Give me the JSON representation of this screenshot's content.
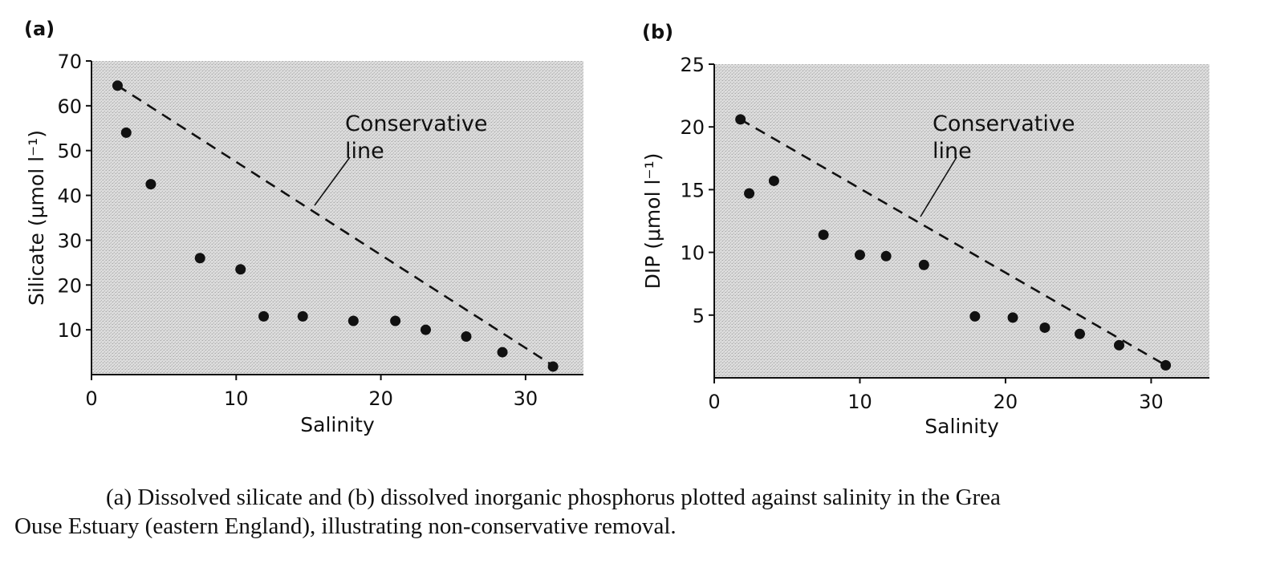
{
  "chart_data": [
    {
      "type": "scatter",
      "panel_label": "(a)",
      "xlabel": "Salinity",
      "ylabel": "Silicate (μmol l⁻¹)",
      "xlim": [
        0,
        34
      ],
      "ylim": [
        0,
        70
      ],
      "xticks": [
        0,
        10,
        20,
        30
      ],
      "yticks": [
        10,
        20,
        30,
        40,
        50,
        60,
        70
      ],
      "annotation": [
        "Conservative",
        "line"
      ],
      "conservative_line": {
        "x": [
          1.8,
          32
        ],
        "y": [
          64.5,
          1.8
        ]
      },
      "points": {
        "x": [
          1.8,
          2.4,
          4.1,
          7.5,
          10.3,
          11.9,
          14.6,
          18.1,
          21.0,
          23.1,
          25.9,
          28.4,
          31.9
        ],
        "y": [
          64.5,
          54,
          42.5,
          26,
          23.5,
          13,
          13,
          12,
          12,
          10,
          8.5,
          5,
          1.8
        ]
      }
    },
    {
      "type": "scatter",
      "panel_label": "(b)",
      "xlabel": "Salinity",
      "ylabel": "DIP (μmol l⁻¹)",
      "xlim": [
        0,
        34
      ],
      "ylim": [
        0,
        25
      ],
      "xticks": [
        0,
        10,
        20,
        30
      ],
      "yticks": [
        5,
        10,
        15,
        20,
        25
      ],
      "annotation": [
        "Conservative",
        "line"
      ],
      "conservative_line": {
        "x": [
          1.8,
          31
        ],
        "y": [
          20.6,
          1
        ]
      },
      "points": {
        "x": [
          1.8,
          2.4,
          4.1,
          7.5,
          10.0,
          11.8,
          14.4,
          17.9,
          20.5,
          22.7,
          25.1,
          27.8,
          31.0
        ],
        "y": [
          20.6,
          14.7,
          15.7,
          11.4,
          9.8,
          9.7,
          9.0,
          4.9,
          4.8,
          4.0,
          3.5,
          2.6,
          1.0
        ]
      }
    }
  ],
  "caption": {
    "line1": "(a) Dissolved silicate and (b) dissolved inorganic phosphorus plotted against salinity in the Grea",
    "line2": "Ouse Estuary (eastern England), illustrating non-conservative removal."
  },
  "colors": {
    "plot_background": "#d6d6d6",
    "ink": "#111111",
    "page": "#ffffff"
  }
}
